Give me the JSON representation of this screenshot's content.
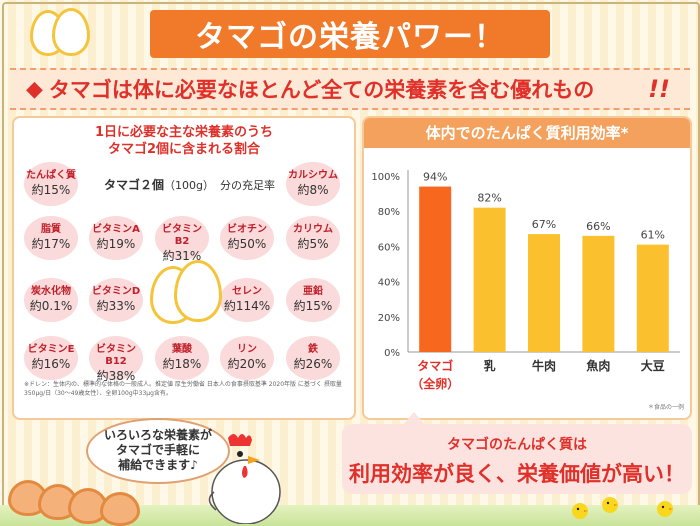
{
  "header": {
    "title": "タマゴの栄養パワー！"
  },
  "subheading": {
    "diamond": "◆",
    "text": "タマゴは体に必要なほとんど全ての栄養素を含む優れもの",
    "bang": "!!"
  },
  "left_panel": {
    "heading_line1": "1日に必要な主な栄養素のうち",
    "heading_line2": "タマゴ2個に含まれる割合",
    "caption_strong": "タマゴ２個",
    "caption_weight": "（100g）",
    "caption_rest": "分の充足率",
    "nutrients": [
      {
        "name": "たんぱく質",
        "value": "約15%"
      },
      {
        "name": "カルシウム",
        "value": "約8%"
      },
      {
        "name": "脂質",
        "value": "約17%"
      },
      {
        "name": "ビタミンA",
        "value": "約19%"
      },
      {
        "name": "ビタミンB2",
        "value": "約31%"
      },
      {
        "name": "ビオチン",
        "value": "約50%"
      },
      {
        "name": "カリウム",
        "value": "約5%"
      },
      {
        "name": "炭水化物",
        "value": "約0.1%"
      },
      {
        "name": "ビタミンD",
        "value": "約33%"
      },
      {
        "name": "セレン",
        "value": "約114%"
      },
      {
        "name": "亜鉛",
        "value": "約15%"
      },
      {
        "name": "ビタミンE",
        "value": "約16%"
      },
      {
        "name": "ビタミンB12",
        "value": "約38%"
      },
      {
        "name": "葉酸",
        "value": "約18%"
      },
      {
        "name": "リン",
        "value": "約20%"
      },
      {
        "name": "鉄",
        "value": "約26%"
      }
    ],
    "footnote": "※ドレン：生体内の、標準的な体格の一般成人。推定値 厚生労働省 日本人の食事摂取基準 2020年版 に基づく 摂取量350μg/日（30～49歳女性）、全卵100g中33μg含有。"
  },
  "right_panel": {
    "title": "体内でのたんぱく質利用効率*",
    "footnote": "＊食品の一例"
  },
  "chart_data": {
    "type": "bar",
    "categories": [
      "タマゴ\n（全卵）",
      "乳",
      "牛肉",
      "魚肉",
      "大豆"
    ],
    "category_labels": [
      "タマゴ",
      "乳",
      "牛肉",
      "魚肉",
      "大豆"
    ],
    "category_sub": "（全卵）",
    "values": [
      94,
      82,
      67,
      66,
      61
    ],
    "value_labels": [
      "94%",
      "82%",
      "67%",
      "66%",
      "61%"
    ],
    "yticks": [
      "0%",
      "20%",
      "40%",
      "60%",
      "80%",
      "100%"
    ],
    "ylim": [
      0,
      100
    ],
    "colors": {
      "highlight": "#f7681e",
      "default": "#fbc02d"
    }
  },
  "callout": {
    "line1": "タマゴのたんぱく質は",
    "line2": "利用効率が良く、栄養価値が高い！"
  },
  "speech": {
    "line1": "いろいろな栄養素が",
    "line2": "タマゴで手軽に",
    "line3": "補給できます♪"
  },
  "colors": {
    "accent": "#f07a2a",
    "title_red": "#e0302a",
    "bubble": "#fadada"
  }
}
